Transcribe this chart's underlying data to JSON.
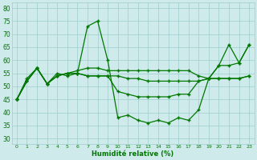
{
  "xlabel": "Humidité relative (%)",
  "bg_color": "#ceeaea",
  "grid_color": "#9ecece",
  "line_color": "#007700",
  "xlim": [
    -0.5,
    23.5
  ],
  "ylim": [
    28,
    82
  ],
  "yticks": [
    30,
    35,
    40,
    45,
    50,
    55,
    60,
    65,
    70,
    75,
    80
  ],
  "xticks": [
    0,
    1,
    2,
    3,
    4,
    5,
    6,
    7,
    8,
    9,
    10,
    11,
    12,
    13,
    14,
    15,
    16,
    17,
    18,
    19,
    20,
    21,
    22,
    23
  ],
  "lines": [
    [
      45,
      52,
      57,
      51,
      55,
      54,
      55,
      73,
      75,
      60,
      38,
      39,
      37,
      36,
      37,
      36,
      38,
      37,
      41,
      53,
      58,
      66,
      59,
      66
    ],
    [
      45,
      52,
      57,
      51,
      54,
      55,
      56,
      57,
      57,
      56,
      56,
      56,
      56,
      56,
      56,
      56,
      56,
      56,
      54,
      53,
      53,
      53,
      53,
      54
    ],
    [
      45,
      53,
      57,
      51,
      54,
      55,
      55,
      54,
      54,
      54,
      54,
      53,
      53,
      52,
      52,
      52,
      52,
      52,
      52,
      53,
      58,
      58,
      59,
      66
    ],
    [
      45,
      52,
      57,
      51,
      54,
      55,
      55,
      54,
      54,
      54,
      48,
      47,
      46,
      46,
      46,
      46,
      47,
      47,
      52,
      53,
      53,
      53,
      53,
      54
    ]
  ]
}
